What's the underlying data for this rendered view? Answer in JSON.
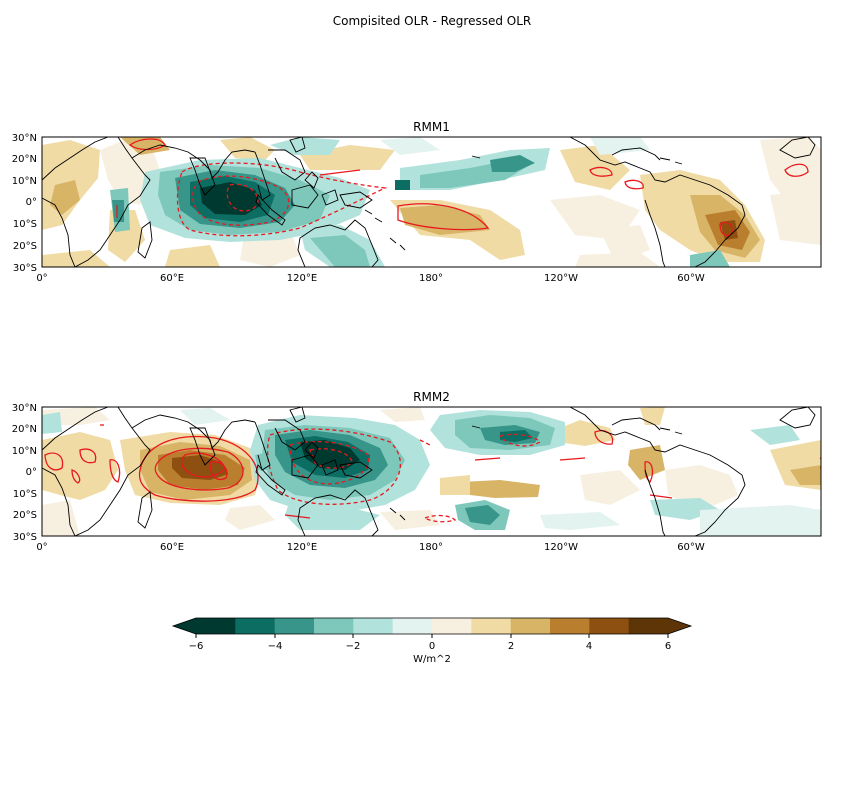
{
  "figure": {
    "suptitle": "Compisited OLR - Regressed OLR"
  },
  "colors": {
    "scale": [
      "#00392f",
      "#0c6e63",
      "#38958a",
      "#7ec8bb",
      "#b2e2dc",
      "#e2f3f0",
      "#f7f0e0",
      "#f0dba5",
      "#d8b467",
      "#b97e2e",
      "#8d5010",
      "#5d3507"
    ],
    "contour": "#e8191e",
    "coast": "#000000"
  },
  "panels": [
    {
      "title": "RMM1",
      "lat_ticks": [
        "30°N",
        "20°N",
        "10°N",
        "0°",
        "10°S",
        "20°S",
        "30°S"
      ],
      "lon_ticks": [
        "0°",
        "60°E",
        "120°E",
        "180°",
        "120°W",
        "60°W"
      ]
    },
    {
      "title": "RMM2",
      "lat_ticks": [
        "30°N",
        "20°N",
        "10°N",
        "0°",
        "10°S",
        "20°S",
        "30°S"
      ],
      "lon_ticks": [
        "0°",
        "60°E",
        "120°E",
        "180°",
        "120°W",
        "60°W"
      ]
    }
  ],
  "colorbar": {
    "label": "W/m^2",
    "ticks": [
      "−6",
      "−4",
      "−2",
      "0",
      "2",
      "4",
      "6"
    ],
    "range": [
      -6,
      6
    ],
    "levels": 12
  },
  "chart_data": [
    {
      "type": "heatmap",
      "title": "RMM1",
      "extent": {
        "lon": [
          0,
          360
        ],
        "lat": [
          -30,
          30
        ]
      },
      "cells": [
        {
          "lon": 88,
          "lat": 0,
          "value": -6
        },
        {
          "lon": 100,
          "lat": 3,
          "value": -5
        },
        {
          "lon": 78,
          "lat": -5,
          "value": -4
        },
        {
          "lon": 110,
          "lat": -3,
          "value": -3
        },
        {
          "lon": 125,
          "lat": 3,
          "value": -2
        },
        {
          "lon": 140,
          "lat": 22,
          "value": -2
        },
        {
          "lon": 160,
          "lat": -15,
          "value": -2
        },
        {
          "lon": 205,
          "lat": 15,
          "value": -3
        },
        {
          "lon": 35,
          "lat": -5,
          "value": -2
        },
        {
          "lon": 330,
          "lat": -12,
          "value": 5
        },
        {
          "lon": 315,
          "lat": -5,
          "value": 3
        },
        {
          "lon": 20,
          "lat": 8,
          "value": 2
        },
        {
          "lon": 180,
          "lat": -5,
          "value": 2
        },
        {
          "lon": 260,
          "lat": 23,
          "value": 2
        }
      ]
    },
    {
      "type": "heatmap",
      "title": "RMM2",
      "extent": {
        "lon": [
          0,
          360
        ],
        "lat": [
          -30,
          30
        ]
      },
      "cells": [
        {
          "lon": 135,
          "lat": 5,
          "value": -6
        },
        {
          "lon": 120,
          "lat": 12,
          "value": -5
        },
        {
          "lon": 145,
          "lat": -5,
          "value": -4
        },
        {
          "lon": 220,
          "lat": 12,
          "value": -4
        },
        {
          "lon": 205,
          "lat": -20,
          "value": -3
        },
        {
          "lon": 108,
          "lat": -10,
          "value": -2
        },
        {
          "lon": 75,
          "lat": 2,
          "value": 5
        },
        {
          "lon": 62,
          "lat": 3,
          "value": 4
        },
        {
          "lon": 90,
          "lat": -3,
          "value": 3
        },
        {
          "lon": 200,
          "lat": -5,
          "value": 3
        },
        {
          "lon": 15,
          "lat": 5,
          "value": 2
        },
        {
          "lon": 300,
          "lat": -12,
          "value": 2
        },
        {
          "lon": 350,
          "lat": 3,
          "value": 2
        }
      ]
    }
  ]
}
